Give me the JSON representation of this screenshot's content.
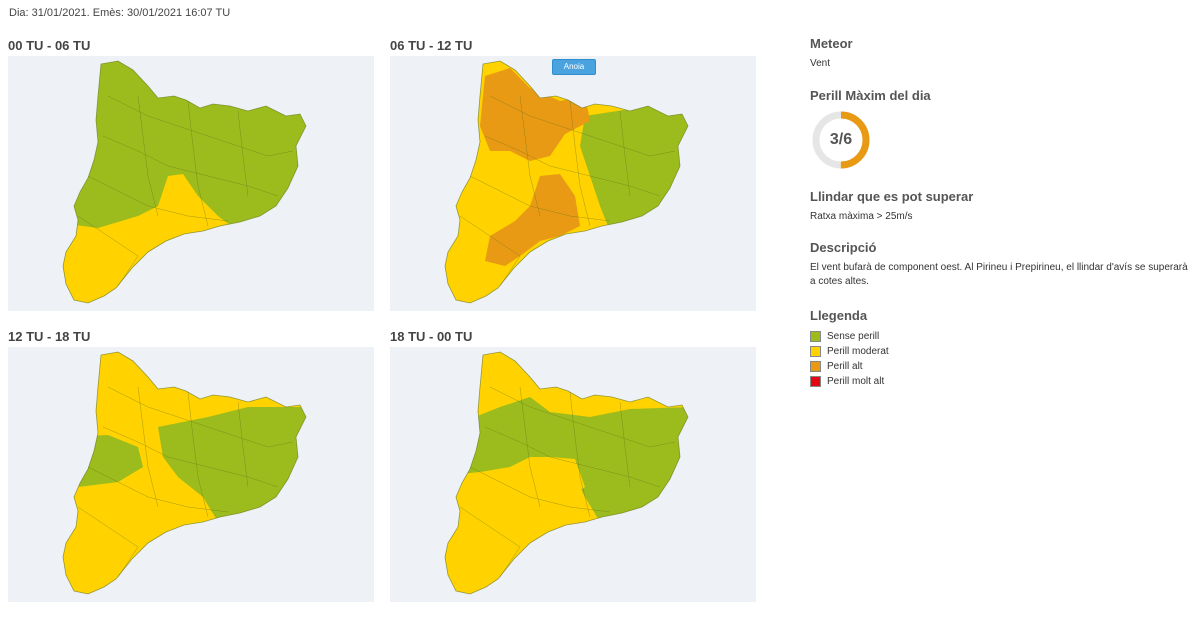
{
  "header": {
    "line": "Dia: 31/01/2021. Emès: 30/01/2021 16:07 TU"
  },
  "panels": [
    {
      "title": "00 TU - 06 TU"
    },
    {
      "title": "06 TU - 12 TU",
      "chip": "Anoia"
    },
    {
      "title": "12 TU - 18 TU"
    },
    {
      "title": "18 TU - 00 TU"
    }
  ],
  "sidebar": {
    "meteor": {
      "heading": "Meteor",
      "value": "Vent"
    },
    "perill": {
      "heading": "Perill Màxim del dia",
      "value": "3/6",
      "level": 3,
      "max": 6
    },
    "llindar": {
      "heading": "Llindar que es pot superar",
      "value": "Ratxa màxima > 25m/s"
    },
    "descripcio": {
      "heading": "Descripció",
      "text": "El vent bufarà de component oest. Al Pirineu i Prepirineu, el llindar d'avís se superarà a cotes altes."
    },
    "llegenda": {
      "heading": "Llegenda",
      "items": [
        {
          "label": "Sense perill",
          "color": "#9cbb1c"
        },
        {
          "label": "Perill moderat",
          "color": "#ffd200"
        },
        {
          "label": "Perill alt",
          "color": "#e99a14"
        },
        {
          "label": "Perill molt alt",
          "color": "#e30613"
        }
      ]
    }
  },
  "colors": {
    "green": "#9cbb1c",
    "yellow": "#ffd200",
    "orange": "#e99a14",
    "gauge_track": "#e6e6e6"
  }
}
